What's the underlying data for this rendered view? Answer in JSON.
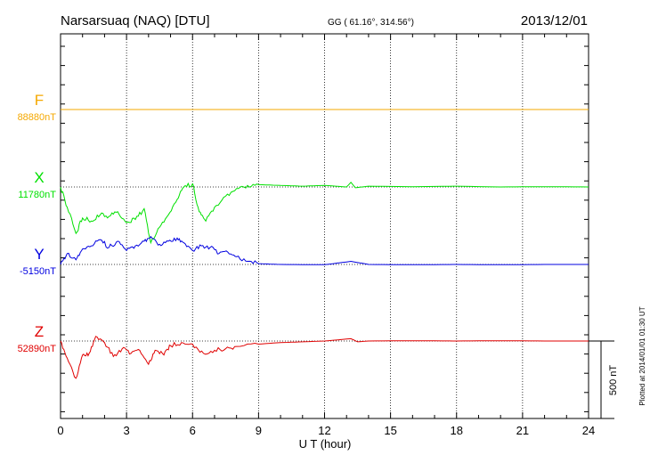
{
  "header": {
    "station": "Narsarsuaq (NAQ)  [DTU]",
    "coords": "GG ( 61.16°, 314.56°)",
    "date": "2013/12/01"
  },
  "footer": {
    "plotted": "Plotted at 2014/01/01 01:30 UT",
    "scale_label": "500 nT"
  },
  "chart_data": {
    "type": "line",
    "title": "Narsarsuaq (NAQ)  [DTU]",
    "xlabel": "U T (hour)",
    "ylabel": "",
    "xlim": [
      0,
      24
    ],
    "x_ticks": [
      0,
      3,
      6,
      9,
      12,
      15,
      18,
      21,
      24
    ],
    "x_tick_labels": [
      "0",
      "3",
      "6",
      "9",
      "12",
      "15",
      "18",
      "21",
      "24"
    ],
    "grid": "vertical dotted lines at every 3 hours",
    "scale_bar_nT": 500,
    "series": [
      {
        "name": "F",
        "baseline_label": "88880nT",
        "baseline": 88880,
        "color": "#f5a800",
        "x": [
          0,
          24
        ],
        "values": [
          88880,
          88880
        ]
      },
      {
        "name": "X",
        "baseline_label": "11780nT",
        "baseline": 11780,
        "color": "#00e000",
        "x": [
          0,
          0.3,
          0.7,
          1.0,
          1.4,
          1.8,
          2.2,
          2.6,
          3.0,
          3.4,
          3.8,
          4.1,
          4.5,
          4.9,
          5.3,
          5.6,
          6.0,
          6.3,
          6.6,
          7.0,
          7.5,
          8.0,
          8.5,
          9.0,
          10,
          11,
          12,
          13.0,
          13.2,
          13.4,
          14,
          16,
          18,
          20,
          22,
          24
        ],
        "values": [
          11780,
          11650,
          11480,
          11580,
          11560,
          11600,
          11590,
          11620,
          11550,
          11570,
          11640,
          11420,
          11520,
          11600,
          11700,
          11780,
          11800,
          11620,
          11560,
          11650,
          11720,
          11770,
          11790,
          11795,
          11790,
          11785,
          11790,
          11780,
          11810,
          11775,
          11785,
          11782,
          11785,
          11780,
          11782,
          11780
        ]
      },
      {
        "name": "Y",
        "baseline_label": "-5150nT",
        "baseline": -5150,
        "color": "#0000e0",
        "x": [
          0,
          0.3,
          0.7,
          1.0,
          1.4,
          1.8,
          2.2,
          2.6,
          3.0,
          3.4,
          3.8,
          4.1,
          4.5,
          4.9,
          5.3,
          5.6,
          6.0,
          6.4,
          6.8,
          7.2,
          7.6,
          8.0,
          8.5,
          9.0,
          10,
          12,
          13.2,
          14,
          16,
          18,
          20,
          22,
          24
        ],
        "values": [
          -5150,
          -5080,
          -5120,
          -5050,
          -5030,
          -4990,
          -5040,
          -5000,
          -5060,
          -5030,
          -5000,
          -4970,
          -5020,
          -5000,
          -4980,
          -5010,
          -5060,
          -5030,
          -5040,
          -5080,
          -5070,
          -5100,
          -5130,
          -5145,
          -5150,
          -5152,
          -5130,
          -5150,
          -5152,
          -5150,
          -5152,
          -5150,
          -5150
        ]
      },
      {
        "name": "Z",
        "baseline_label": "52890nT",
        "baseline": 52890,
        "color": "#e00000",
        "x": [
          0,
          0.3,
          0.7,
          1.0,
          1.3,
          1.6,
          2.0,
          2.4,
          2.8,
          3.2,
          3.6,
          4.0,
          4.3,
          4.7,
          5.0,
          5.5,
          6.0,
          6.5,
          7.0,
          7.5,
          8.0,
          9.0,
          10,
          11,
          12,
          13.2,
          13.5,
          14,
          16,
          18,
          20,
          22,
          24
        ],
        "values": [
          52890,
          52780,
          52650,
          52800,
          52810,
          52920,
          52880,
          52790,
          52840,
          52810,
          52830,
          52740,
          52830,
          52800,
          52860,
          52880,
          52870,
          52810,
          52830,
          52840,
          52855,
          52870,
          52880,
          52885,
          52890,
          52905,
          52885,
          52890,
          52892,
          52890,
          52892,
          52890,
          52890
        ]
      }
    ]
  }
}
